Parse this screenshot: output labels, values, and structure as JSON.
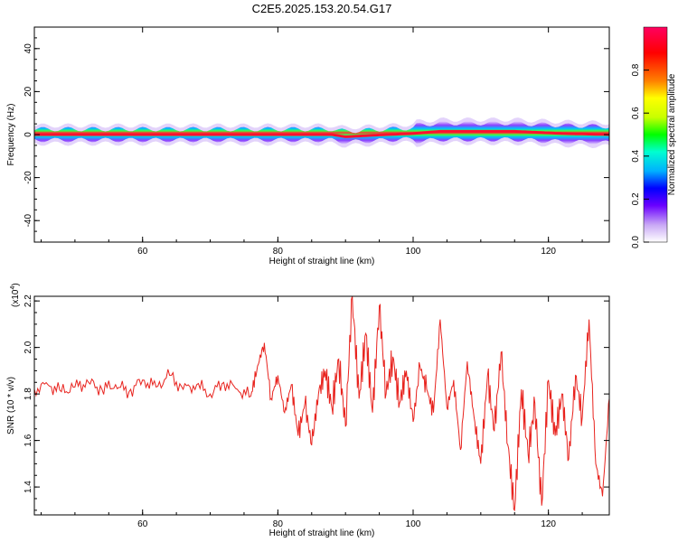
{
  "title": "C2E5.2025.153.20.54.G17",
  "chart_data": [
    {
      "type": "heatmap",
      "xlabel": "Height of straight line (km)",
      "ylabel": "Frequency (Hz)",
      "xlim": [
        44,
        129
      ],
      "ylim": [
        -50,
        50
      ],
      "xticks": [
        60,
        80,
        100,
        120
      ],
      "yticks": [
        40,
        20,
        0,
        -20,
        -40
      ],
      "band_center_frequency": [
        {
          "x": 44,
          "f": 0
        },
        {
          "x": 88,
          "f": 0
        },
        {
          "x": 90,
          "f": -1
        },
        {
          "x": 96,
          "f": 0
        },
        {
          "x": 100,
          "f": 0.5
        },
        {
          "x": 104,
          "f": 1.5
        },
        {
          "x": 115,
          "f": 1.5
        },
        {
          "x": 122,
          "f": 0.5
        },
        {
          "x": 129,
          "f": 0
        }
      ],
      "colorbar": {
        "label": "Normalized spectral amplitude",
        "range": [
          0,
          1
        ],
        "ticks": [
          "0.0",
          "0.2",
          "0.4",
          "0.6",
          "0.8"
        ],
        "colormap": [
          "#ffffff",
          "#c9a8f5",
          "#6a00ff",
          "#0000ff",
          "#00b0ff",
          "#00ffd0",
          "#00ff00",
          "#c8ff00",
          "#ffff00",
          "#ff8000",
          "#ff0000",
          "#ff0060"
        ]
      }
    },
    {
      "type": "line",
      "xlabel": "Height of straight line (km)",
      "ylabel": "SNR (10 * v/v)",
      "yscale_label": "(x10",
      "yscale_exp": "4",
      "xlim": [
        44,
        129
      ],
      "ylim": [
        1.28,
        2.22
      ],
      "xticks": [
        60,
        80,
        100,
        120
      ],
      "yticks": [
        "2.2",
        "2.0",
        "1.8",
        "1.6",
        "1.4"
      ],
      "ytick_values": [
        2.2,
        2.0,
        1.8,
        1.6,
        1.4
      ],
      "series": [
        {
          "color": "#e8231e",
          "x": [
            44,
            46,
            48,
            50,
            52,
            54,
            56,
            58,
            60,
            62,
            64,
            66,
            68,
            70,
            72,
            74,
            76,
            77,
            78,
            79,
            80,
            81,
            82,
            83,
            84,
            85,
            86,
            87,
            88,
            89,
            90,
            91,
            92,
            93,
            94,
            95,
            96,
            97,
            98,
            99,
            100,
            101,
            102,
            103,
            104,
            105,
            106,
            107,
            108,
            109,
            110,
            111,
            112,
            113,
            114,
            115,
            116,
            117,
            118,
            119,
            120,
            121,
            122,
            123,
            124,
            125,
            126,
            127,
            128,
            129
          ],
          "y": [
            1.82,
            1.84,
            1.81,
            1.83,
            1.85,
            1.82,
            1.84,
            1.81,
            1.86,
            1.83,
            1.88,
            1.82,
            1.84,
            1.8,
            1.85,
            1.82,
            1.79,
            1.92,
            2.02,
            1.78,
            1.88,
            1.72,
            1.84,
            1.62,
            1.76,
            1.58,
            1.8,
            1.9,
            1.74,
            1.95,
            1.66,
            2.22,
            1.78,
            2.06,
            1.72,
            2.18,
            1.8,
            1.96,
            1.76,
            1.9,
            1.68,
            1.92,
            1.82,
            1.72,
            2.12,
            1.74,
            1.86,
            1.56,
            1.94,
            1.7,
            1.5,
            1.88,
            1.64,
            1.98,
            1.58,
            1.3,
            1.82,
            1.54,
            1.76,
            1.32,
            1.86,
            1.62,
            1.8,
            1.52,
            1.88,
            1.7,
            2.12,
            1.5,
            1.36,
            1.78
          ]
        }
      ]
    }
  ]
}
